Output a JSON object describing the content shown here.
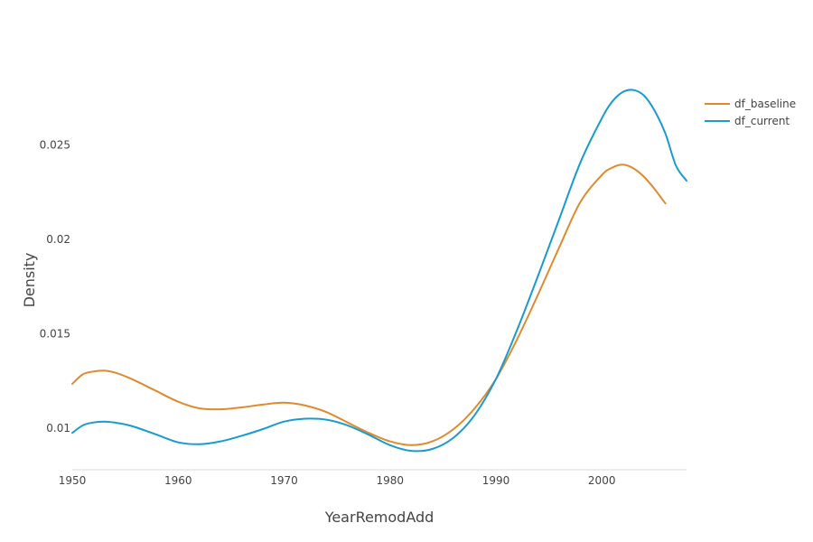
{
  "chart_data": {
    "type": "line",
    "title": "",
    "xlabel": "YearRemodAdd",
    "ylabel": "Density",
    "xlim": [
      1950,
      2008
    ],
    "ylim": [
      0.0078,
      0.0298
    ],
    "x_ticks": [
      1950,
      1960,
      1970,
      1980,
      1990,
      2000
    ],
    "y_ticks": [
      0.01,
      0.015,
      0.02,
      0.025
    ],
    "y_tick_labels": [
      "0.01",
      "0.015",
      "0.02",
      "0.025"
    ],
    "grid": false,
    "legend_position": "top-right",
    "series": [
      {
        "name": "df_baseline",
        "color": "#e08a2e",
        "x": [
          1950,
          1951,
          1952,
          1953,
          1954,
          1955,
          1956,
          1958,
          1960,
          1962,
          1964,
          1966,
          1968,
          1970,
          1972,
          1974,
          1976,
          1978,
          1980,
          1982,
          1984,
          1986,
          1988,
          1990,
          1992,
          1994,
          1996,
          1998,
          2000,
          2001,
          2002,
          2003,
          2004,
          2005,
          2006
        ],
        "y": [
          0.01235,
          0.01285,
          0.013,
          0.01305,
          0.01295,
          0.01275,
          0.0125,
          0.01195,
          0.0114,
          0.01105,
          0.011,
          0.0111,
          0.01125,
          0.01135,
          0.0112,
          0.01085,
          0.0103,
          0.00975,
          0.0093,
          0.0091,
          0.0093,
          0.00995,
          0.01105,
          0.0126,
          0.0147,
          0.0171,
          0.0196,
          0.022,
          0.0234,
          0.0238,
          0.02395,
          0.02375,
          0.0233,
          0.02265,
          0.0219
        ]
      },
      {
        "name": "df_current",
        "color": "#1a9bd0",
        "x": [
          1950,
          1951,
          1952,
          1953,
          1954,
          1955,
          1956,
          1958,
          1960,
          1962,
          1964,
          1966,
          1968,
          1970,
          1972,
          1974,
          1976,
          1978,
          1980,
          1982,
          1984,
          1986,
          1988,
          1990,
          1992,
          1994,
          1996,
          1998,
          2000,
          2001,
          2002,
          2003,
          2004,
          2005,
          2006,
          2007,
          2008
        ],
        "y": [
          0.00975,
          0.01015,
          0.0103,
          0.01035,
          0.0103,
          0.0102,
          0.01005,
          0.00965,
          0.00925,
          0.00915,
          0.0093,
          0.0096,
          0.00995,
          0.01035,
          0.0105,
          0.01045,
          0.01015,
          0.00965,
          0.0091,
          0.0088,
          0.0089,
          0.0095,
          0.0107,
          0.0126,
          0.0152,
          0.0181,
          0.0211,
          0.0241,
          0.0264,
          0.0273,
          0.0278,
          0.0279,
          0.0276,
          0.0268,
          0.0256,
          0.0239,
          0.0231
        ]
      }
    ]
  }
}
